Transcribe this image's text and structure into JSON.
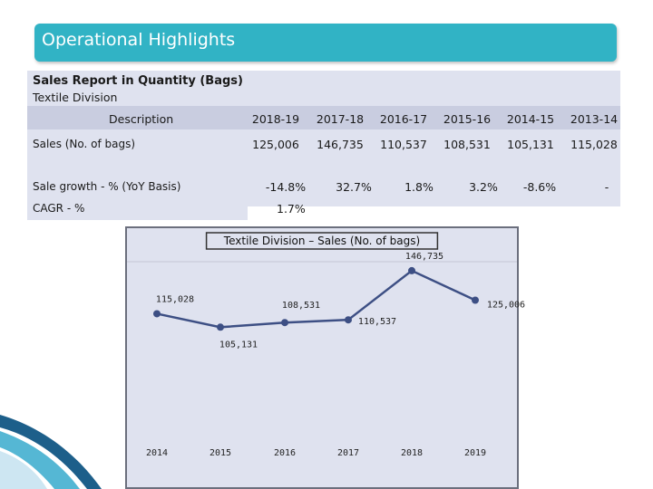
{
  "header": {
    "title": "Operational Highlights"
  },
  "report": {
    "heading": "Sales Report in Quantity (Bags)",
    "subheading": "Textile Division",
    "description_header": "Description",
    "years": [
      "2018-19",
      "2017-18",
      "2016-17",
      "2015-16",
      "2014-15",
      "2013-14"
    ],
    "sales_label": "Sales (No. of bags)",
    "sales": [
      "125,006",
      "146,735",
      "110,537",
      "108,531",
      "105,131",
      "115,028"
    ],
    "growth_label": "Sale growth - % (YoY Basis)",
    "growth": [
      "-14.8%",
      "32.7%",
      "1.8%",
      "3.2%",
      "-8.6%",
      "-"
    ],
    "cagr_label": "CAGR - %",
    "cagr_value": "1.7%"
  },
  "colors": {
    "title_bar": "#31b3c5",
    "panel": "#dfe2ef",
    "band": "#c9cde0",
    "line": "#3d4f84"
  },
  "chart_data": {
    "type": "line",
    "title": "Textile Division – Sales (No. of bags)",
    "categories": [
      "2014",
      "2015",
      "2016",
      "2017",
      "2018",
      "2019"
    ],
    "values": [
      115028,
      105131,
      108531,
      110537,
      146735,
      125006
    ],
    "labels": [
      "115,028",
      "105,131",
      "108,531",
      "110,537",
      "146,735",
      "125,006"
    ],
    "xlabel": "",
    "ylabel": "",
    "grid": false,
    "legend": "none"
  }
}
